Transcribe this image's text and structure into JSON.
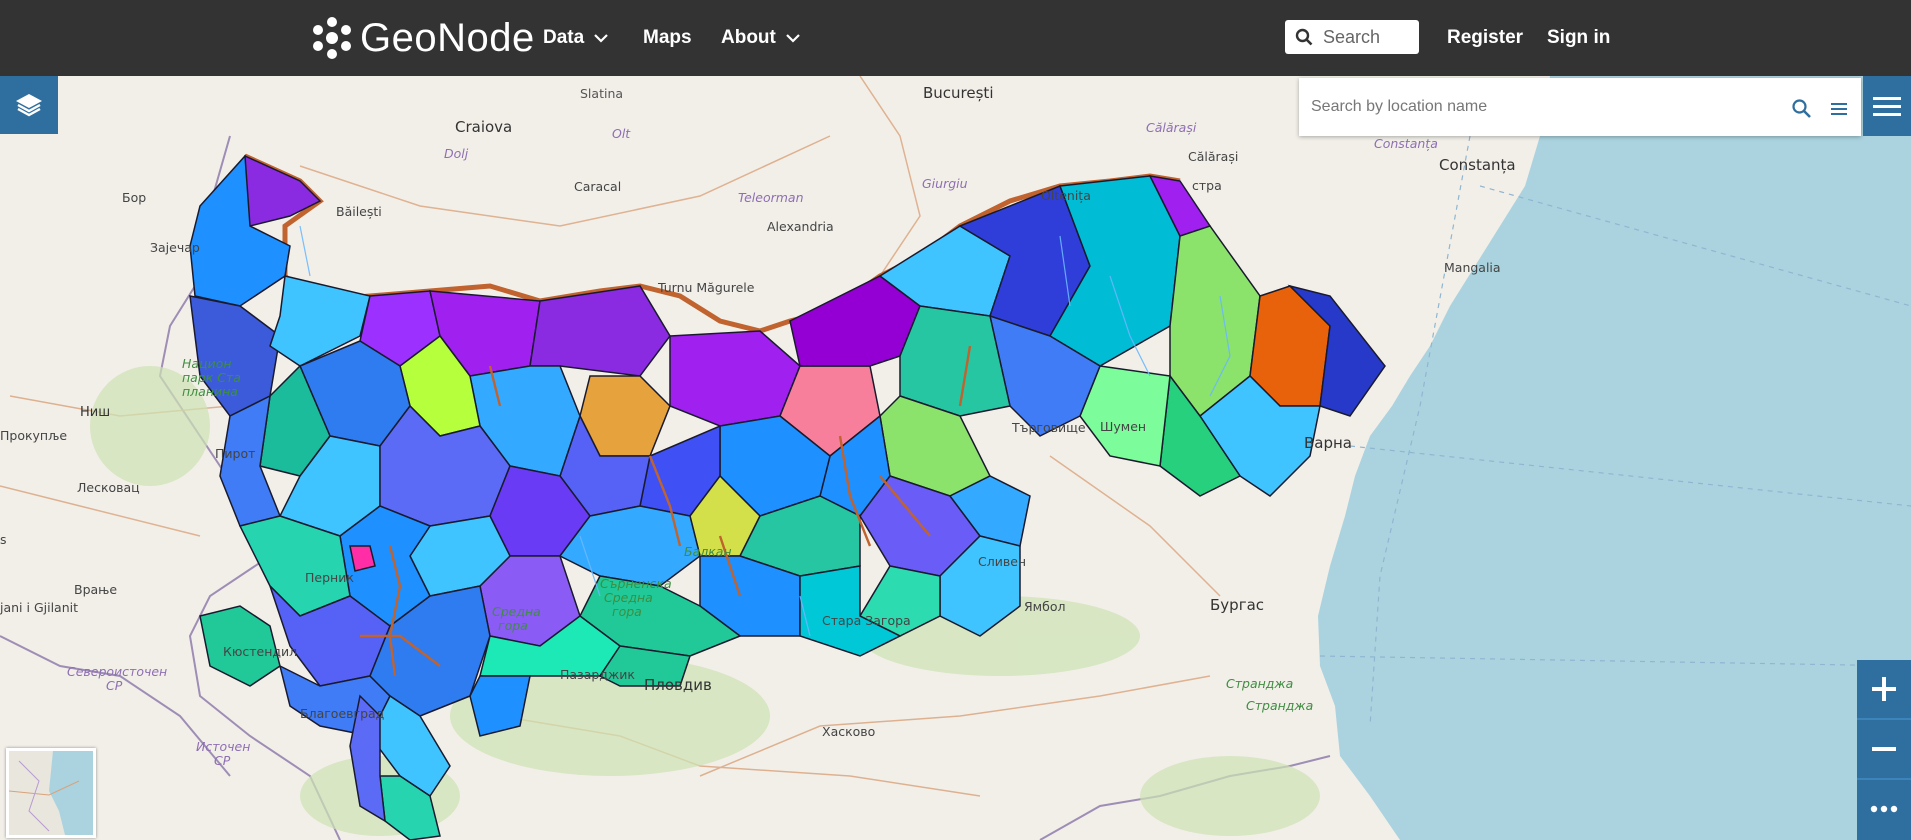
{
  "header": {
    "logo_text": "GeoNode",
    "nav": {
      "data_label": "Data",
      "maps_label": "Maps",
      "about_label": "About"
    },
    "search_placeholder": "Search",
    "register_label": "Register",
    "signin_label": "Sign in"
  },
  "map": {
    "location_search_placeholder": "Search by location name",
    "labels": {
      "craiova": "Craiova",
      "slatina": "Slatina",
      "olt": "Olt",
      "bucuresti": "București",
      "calarasi_county": "Călărași",
      "calarasi": "Călărași",
      "constanta_county": "Constanța",
      "constanta": "Constanța",
      "dolj": "Dolj",
      "caracal": "Caracal",
      "teleorman": "Teleorman",
      "giurgiu": "Giurgiu",
      "oltenita": "Oltenița",
      "silistra": "стра",
      "bor": "Бор",
      "bailesti": "Băilești",
      "alexandria": "Alexandria",
      "zajecar": "Зајечар",
      "turnu": "Turnu Măgurele",
      "mangalia": "Mangalia",
      "np1": "Национ",
      "np2": "парк Ста",
      "np3": "планина",
      "nis": "Ниш",
      "prokuplje": "Прокупље",
      "pirot": "Пирот",
      "leskovac": "Лесковац",
      "targoviste": "Търговище",
      "shumen": "Шумен",
      "varna": "Варна",
      "s": "s",
      "vranje": "Врање",
      "gjilan": "jani i Gjilanit",
      "pernik": "Перник",
      "balkan": "Балкан",
      "sliven": "Сливен",
      "yambol": "Ямбол",
      "burgas": "Бургас",
      "sr1": "Сърненска",
      "sr2": "Средна",
      "sr3": "гора",
      "sr4": "Средна",
      "sr5": "гора",
      "stara": "Стара Загора",
      "kyustendil": "Кюстендил",
      "sev1": "Североисточен",
      "sev2": "СР",
      "pazardzhik": "Пазарджик",
      "plovdiv": "Пловдив",
      "strandzha1": "Странджа",
      "strandzha2": "Странджа",
      "blagoevgrad": "Благоевград",
      "haskovo": "Хасково",
      "ist1": "Источен",
      "ist2": "СР"
    }
  },
  "colors": {
    "header_bg": "#333333",
    "control_blue": "#2f6f9f",
    "sea": "#aad3df",
    "land": "#f2efe9",
    "danube": "#c0632e"
  },
  "icons": {
    "logo": "geonode-flower-icon",
    "search": "magnifier-icon",
    "layers": "layers-icon",
    "menu": "hamburger-icon",
    "zoom_in": "plus-icon",
    "zoom_out": "minus-icon",
    "more": "ellipsis-icon"
  }
}
